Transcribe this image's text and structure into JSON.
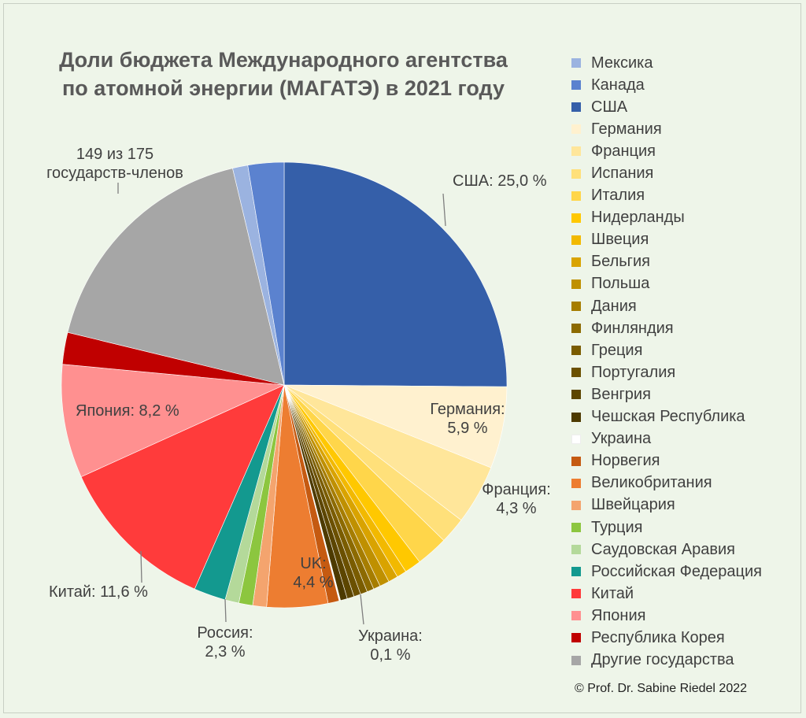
{
  "chart_data": {
    "type": "pie",
    "title": [
      "Доли бюджета Международного агентства",
      "по атомной энергии (МАГАТЭ) в 2021 году"
    ],
    "series": [
      {
        "name": "США",
        "value": 25.0,
        "color": "#355fa9"
      },
      {
        "name": "Германия",
        "value": 5.9,
        "color": "#fff1cf"
      },
      {
        "name": "Франция",
        "value": 4.3,
        "color": "#ffe69a"
      },
      {
        "name": "Испания",
        "value": 1.9,
        "color": "#ffe07a"
      },
      {
        "name": "Италия",
        "value": 2.3,
        "color": "#ffd64a"
      },
      {
        "name": "Нидерланды",
        "value": 1.2,
        "color": "#ffc800"
      },
      {
        "name": "Швеция",
        "value": 0.7,
        "color": "#f2b900"
      },
      {
        "name": "Бельгия",
        "value": 0.7,
        "color": "#d9a300"
      },
      {
        "name": "Польша",
        "value": 0.7,
        "color": "#bf9000"
      },
      {
        "name": "Дания",
        "value": 0.5,
        "color": "#a67d00"
      },
      {
        "name": "Финляндия",
        "value": 0.5,
        "color": "#8c6a00"
      },
      {
        "name": "Греция",
        "value": 0.5,
        "color": "#7a5c00"
      },
      {
        "name": "Португалия",
        "value": 0.5,
        "color": "#6b5000"
      },
      {
        "name": "Венгрия",
        "value": 0.5,
        "color": "#5c4500"
      },
      {
        "name": "Чешская Республика",
        "value": 0.5,
        "color": "#4d3a00"
      },
      {
        "name": "Украина",
        "value": 0.1,
        "color": "#ffffff"
      },
      {
        "name": "Норвегия",
        "value": 0.8,
        "color": "#c55a11"
      },
      {
        "name": "Великобритания",
        "value": 4.4,
        "color": "#ed7d31"
      },
      {
        "name": "Швейцария",
        "value": 1.0,
        "color": "#f4a46e"
      },
      {
        "name": "Турция",
        "value": 1.0,
        "color": "#8cc63f"
      },
      {
        "name": "Саудовская Аравия",
        "value": 1.0,
        "color": "#b4d99a"
      },
      {
        "name": "Российская Федерация",
        "value": 2.3,
        "color": "#13998f"
      },
      {
        "name": "Китай",
        "value": 11.6,
        "color": "#ff3b3b"
      },
      {
        "name": "Япония",
        "value": 8.2,
        "color": "#ff9090"
      },
      {
        "name": "Республика Корея",
        "value": 2.3,
        "color": "#c00000"
      },
      {
        "name": "Другие государства",
        "value": 17.4,
        "color": "#a6a6a6"
      },
      {
        "name": "Мексика",
        "value": 1.1,
        "color": "#9bb3e0"
      },
      {
        "name": "Канада",
        "value": 2.6,
        "color": "#5b82cf"
      }
    ],
    "legend_order": [
      "Мексика",
      "Канада",
      "США",
      "Германия",
      "Франция",
      "Испания",
      "Италия",
      "Нидерланды",
      "Швеция",
      "Бельгия",
      "Польша",
      "Дания",
      "Финляндия",
      "Греция",
      "Португалия",
      "Венгрия",
      "Чешская Республика",
      "Украина",
      "Норвегия",
      "Великобритания",
      "Швейцария",
      "Турция",
      "Саудовская Аравия",
      "Российская Федерация",
      "Китай",
      "Япония",
      "Республика Корея",
      "Другие государства"
    ],
    "legend_position": "right",
    "data_labels": {
      "usa": "США: 25,0 %",
      "germany": [
        "Германия:",
        "5,9 %"
      ],
      "france": [
        "Франция:",
        "4,3 %"
      ],
      "uk": [
        "UK:",
        "4,4 %"
      ],
      "ukraine": [
        "Украина:",
        "0,1 %"
      ],
      "russia": [
        "Россия:",
        "2,3 %"
      ],
      "china": "Китай: 11,6 %",
      "japan": "Япония: 8,2 %",
      "others": [
        "149 из 175",
        "государств-членов"
      ]
    }
  },
  "copyright": "©  Prof. Dr. Sabine Riedel 2022"
}
